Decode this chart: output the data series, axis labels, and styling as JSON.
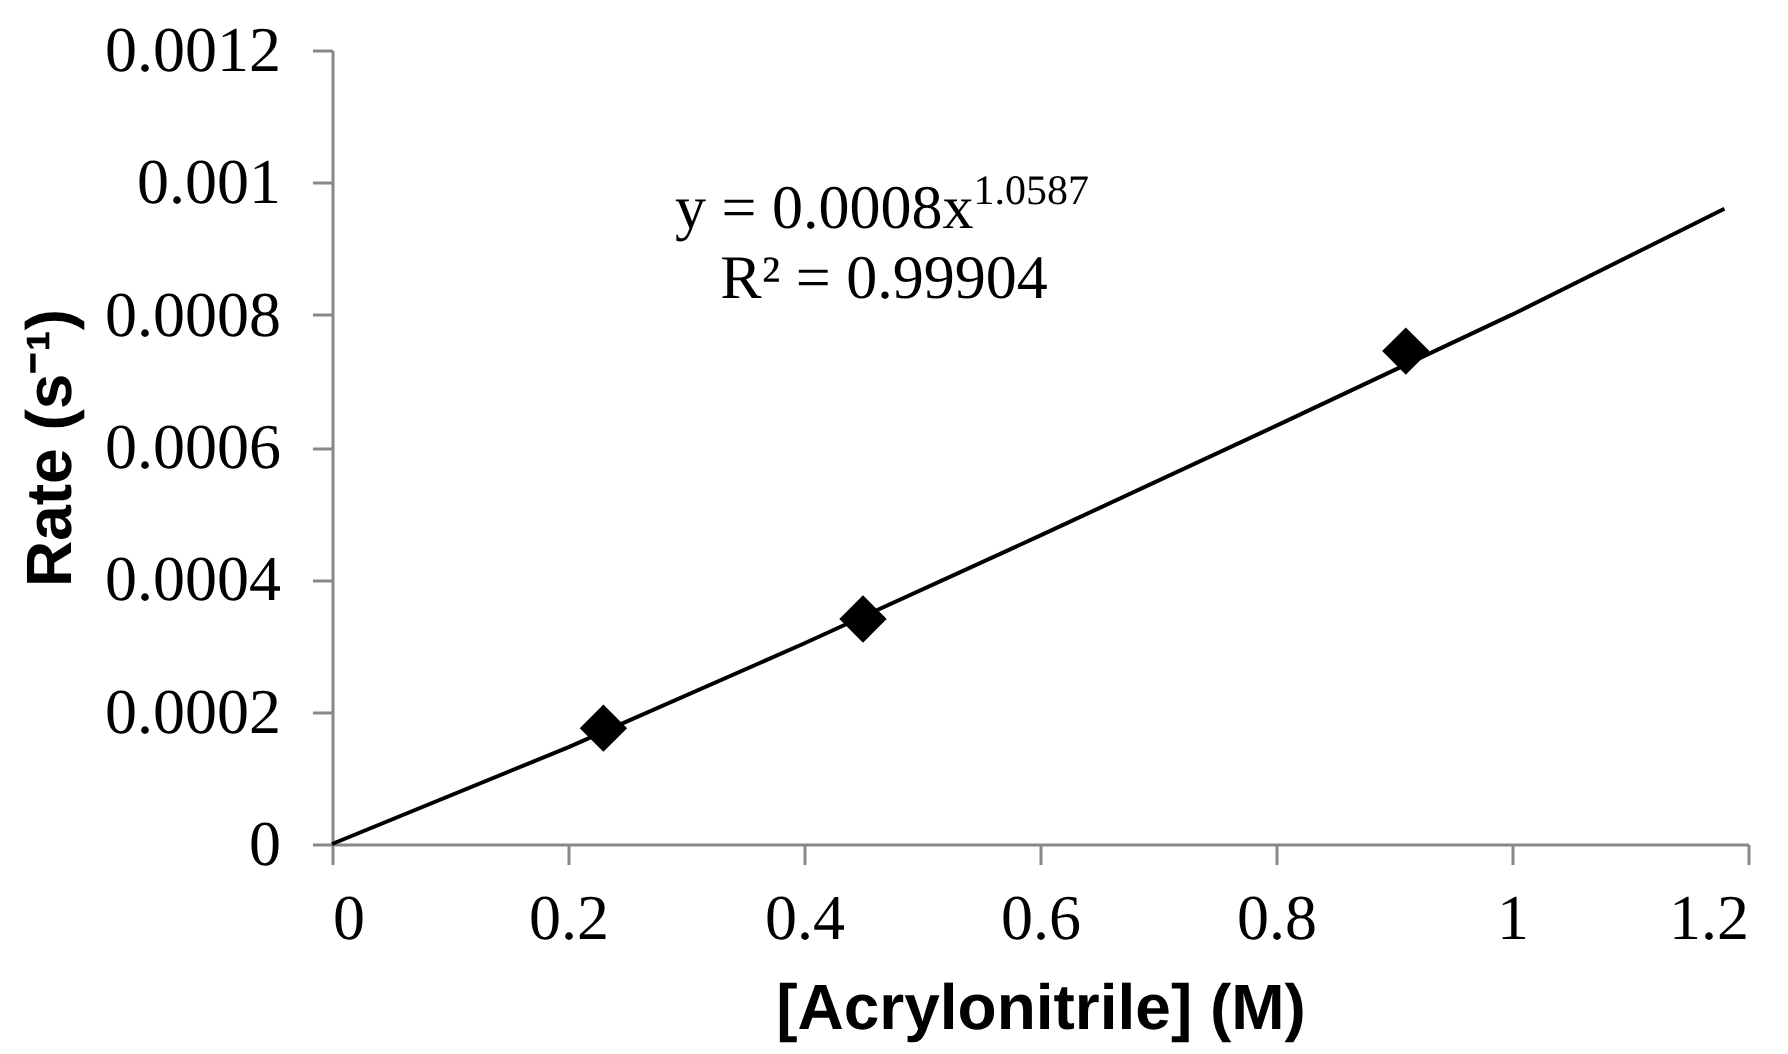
{
  "chart_data": {
    "type": "scatter",
    "xlabel": "[Acrylonitrile] (M)",
    "ylabel": "Rate (s⁻¹)",
    "xlim": [
      0,
      1.2
    ],
    "xticks": [
      0,
      0.2,
      0.4,
      0.6,
      0.8,
      1,
      1.2
    ],
    "ylim": [
      0,
      0.0012
    ],
    "yticks": [
      0,
      0.0002,
      0.0004,
      0.0006,
      0.0008,
      0.001,
      0.0012
    ],
    "marker": "diamond",
    "annotations": [
      "y = 0.0008x$^{1.0587}$",
      "R² = 0.99904"
    ],
    "series": [
      {
        "type": "line",
        "color": "#000000",
        "marker": "none",
        "line_style": "solid",
        "x": [
          0,
          0.2,
          0.4,
          0.6,
          0.8,
          1.0,
          1.18
        ],
        "values": [
          0,
          0.000146,
          0.000303,
          0.000466,
          0.000632,
          0.0008,
          0.00096
        ]
      },
      {
        "color": "#000000",
        "x": [
          0.23,
          0.45,
          0.91
        ],
        "values": [
          0.000175,
          0.00034,
          0.000745
        ]
      }
    ]
  }
}
